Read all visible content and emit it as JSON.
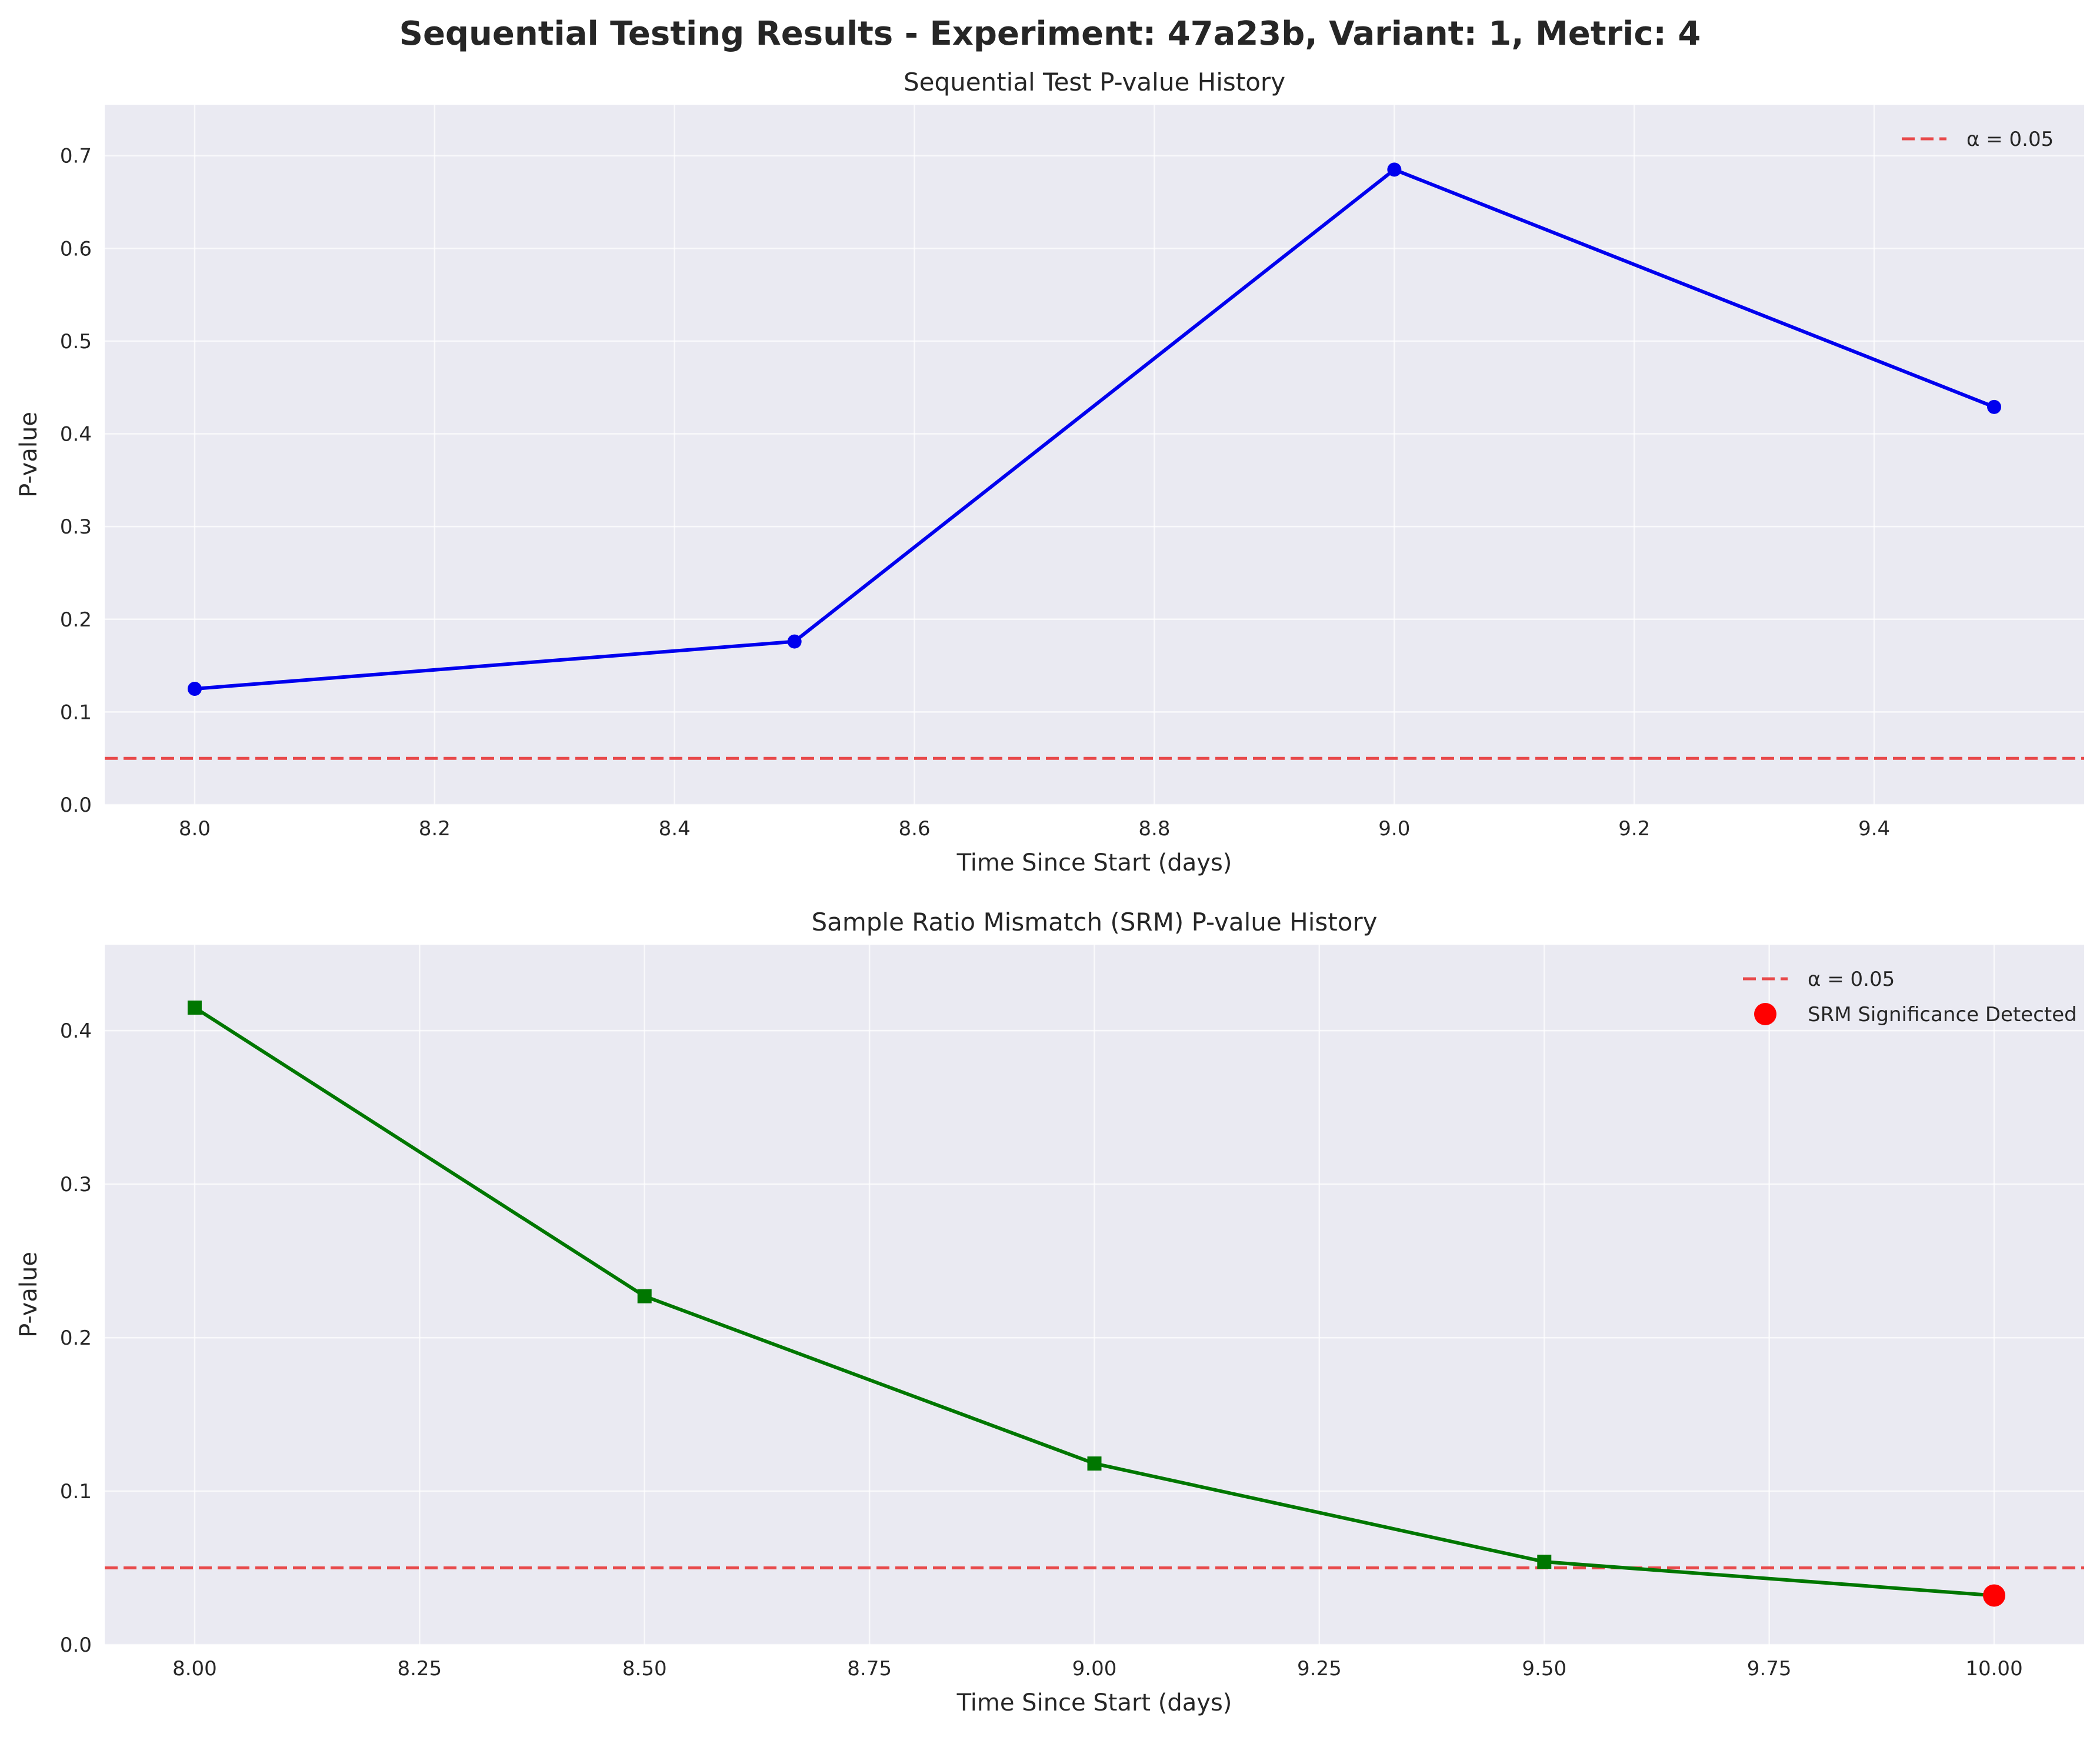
{
  "figure": {
    "title": "Sequential Testing Results - Experiment: 47a23b, Variant: 1, Metric: 4"
  },
  "colors": {
    "axes_bg": "#eaeaf2",
    "grid": "#ffffff",
    "seq_line": "#0000ee",
    "srm_line": "#007700",
    "alpha_line": "#e84040",
    "srm_marker": "#ff0000"
  },
  "chart_data": [
    {
      "type": "line",
      "title": "Sequential Test P-value History",
      "xlabel": "Time Since Start (days)",
      "ylabel": "P-value",
      "xlim": [
        7.925,
        9.575
      ],
      "ylim": [
        0,
        0.755
      ],
      "xticks": [
        8.0,
        8.2,
        8.4,
        8.6,
        8.8,
        9.0,
        9.2,
        9.4
      ],
      "xtick_labels": [
        "8.0",
        "8.2",
        "8.4",
        "8.6",
        "8.8",
        "9.0",
        "9.2",
        "9.4"
      ],
      "yticks": [
        0.0,
        0.1,
        0.2,
        0.3,
        0.4,
        0.5,
        0.6,
        0.7
      ],
      "ytick_labels": [
        "0.0",
        "0.1",
        "0.2",
        "0.3",
        "0.4",
        "0.5",
        "0.6",
        "0.7"
      ],
      "grid": true,
      "legend_position": "top-right",
      "series": [
        {
          "name": "",
          "marker": "circle",
          "x": [
            8.0,
            8.5,
            9.0,
            9.5
          ],
          "y": [
            0.125,
            0.176,
            0.685,
            0.429
          ]
        }
      ],
      "reference_lines": [
        {
          "name": "α = 0.05",
          "y": 0.05,
          "style": "dashed"
        }
      ],
      "highlights": []
    },
    {
      "type": "line",
      "title": "Sample Ratio Mismatch (SRM) P-value History",
      "xlabel": "Time Since Start (days)",
      "ylabel": "P-value",
      "xlim": [
        7.9,
        10.1
      ],
      "ylim": [
        0,
        0.456
      ],
      "xticks": [
        8.0,
        8.25,
        8.5,
        8.75,
        9.0,
        9.25,
        9.5,
        9.75,
        10.0
      ],
      "xtick_labels": [
        "8.00",
        "8.25",
        "8.50",
        "8.75",
        "9.00",
        "9.25",
        "9.50",
        "9.75",
        "10.00"
      ],
      "yticks": [
        0.0,
        0.1,
        0.2,
        0.3,
        0.4
      ],
      "ytick_labels": [
        "0.0",
        "0.1",
        "0.2",
        "0.3",
        "0.4"
      ],
      "grid": true,
      "legend_position": "top-right",
      "series": [
        {
          "name": "",
          "marker": "square",
          "x": [
            8.0,
            8.5,
            9.0,
            9.5,
            10.0
          ],
          "y": [
            0.415,
            0.227,
            0.118,
            0.054,
            0.032
          ]
        }
      ],
      "reference_lines": [
        {
          "name": "α = 0.05",
          "y": 0.05,
          "style": "dashed"
        }
      ],
      "highlights": [
        {
          "name": "SRM Significance Detected",
          "x": 10.0,
          "y": 0.032
        }
      ]
    }
  ]
}
